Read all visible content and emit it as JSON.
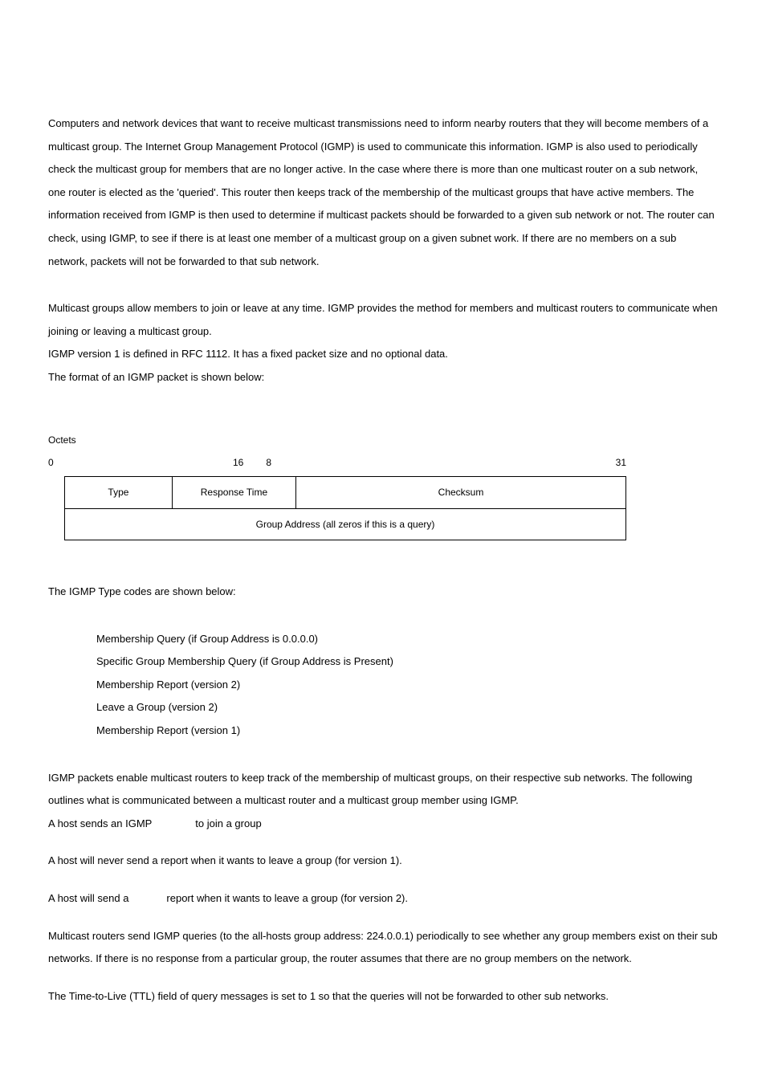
{
  "intro_p1": "Computers and network devices that want to receive multicast transmissions need to inform nearby routers that they will become members of a multicast group. The Internet Group Management Protocol (IGMP) is used to communicate this information. IGMP is also used to periodically check the multicast group for members that are no longer active. In the case where there is more than one multicast router on a sub network, one router is elected as the 'queried'. This router then keeps track of the membership of the multicast groups that have active members. The information received from IGMP is then used to determine if multicast packets should be forwarded to a given sub network or not. The router can check, using IGMP, to see if there is at least one member of a multicast group on a given subnet work. If there are no members on a sub network, packets will not be forwarded to that sub network.",
  "intro_p2_l1": "Multicast groups allow members to join or leave at any time. IGMP provides the method for members and multicast routers to communicate when joining or leaving a multicast group.",
  "intro_p2_l2": "IGMP version 1 is defined in RFC 1112. It has a fixed packet size and no optional data.",
  "intro_p2_l3": "The format of an IGMP packet is shown below:",
  "octets_label": "Octets",
  "bits": {
    "b0": "0",
    "b8": "8",
    "b16": "16",
    "b31": "31"
  },
  "packet": {
    "row1": {
      "type": "Type",
      "response_time": "Response Time",
      "checksum": "Checksum"
    },
    "row2": "Group Address (all zeros if this is a query)"
  },
  "type_codes_intro": "The IGMP Type codes are shown below:",
  "type_codes": {
    "c1": "Membership Query (if Group Address is 0.0.0.0)",
    "c2": "Specific Group Membership Query (if Group Address is Present)",
    "c3": "Membership Report (version 2)",
    "c4": "Leave a Group (version 2)",
    "c5": "Membership Report (version 1)"
  },
  "after_l1": "IGMP packets enable multicast routers to keep track of the membership of multicast groups, on their respective sub networks. The following outlines what is communicated between a multicast router and a multicast group member using IGMP.",
  "after_l2": "A host sends an IGMP               to join a group",
  "after_l3": "A host will never send a report when it wants to leave a group (for version 1).",
  "after_l4": "A host will send a             report when it wants to leave a group (for version 2).",
  "after_l5": "Multicast routers send IGMP queries (to the all-hosts group address: 224.0.0.1) periodically to see whether any group members exist on their sub networks. If there is no response from a particular group, the router assumes that there are no group members on the network.",
  "after_l6": "The Time-to-Live (TTL) field of query messages is set to 1 so that the queries will not be forwarded to other sub networks.",
  "col_widths": {
    "type": "130",
    "resp": "150",
    "chk": "420"
  }
}
